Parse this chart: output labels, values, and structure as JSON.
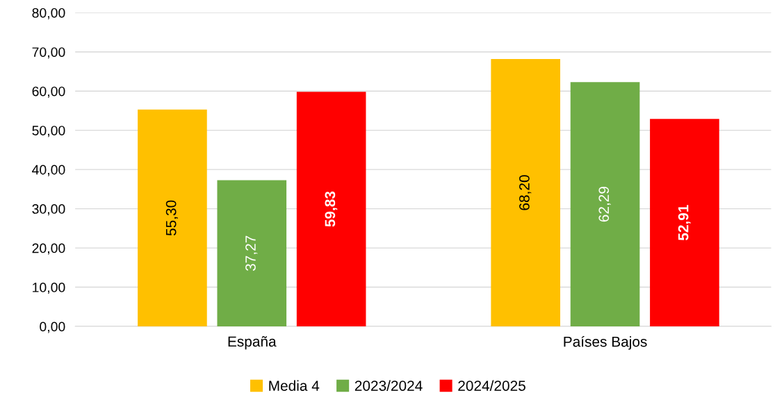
{
  "chart_data": {
    "type": "bar",
    "categories": [
      "España",
      "Países Bajos"
    ],
    "series": [
      {
        "name": "Media 4",
        "color": "#ffc000",
        "values": [
          55.3,
          68.2
        ],
        "value_labels": [
          "55,30",
          "68,20"
        ]
      },
      {
        "name": "2023/2024",
        "color": "#70ad47",
        "values": [
          37.27,
          62.29
        ],
        "value_labels": [
          "37,27",
          "62,29"
        ]
      },
      {
        "name": "2024/2025",
        "color": "#ff0000",
        "values": [
          59.83,
          52.91
        ],
        "value_labels": [
          "59,83",
          "52,91"
        ]
      }
    ],
    "ylim": [
      0,
      80
    ],
    "yticks": [
      {
        "value": 0,
        "label": "0,00"
      },
      {
        "value": 10,
        "label": "10,00"
      },
      {
        "value": 20,
        "label": "20,00"
      },
      {
        "value": 30,
        "label": "30,00"
      },
      {
        "value": 40,
        "label": "40,00"
      },
      {
        "value": 50,
        "label": "50,00"
      },
      {
        "value": 60,
        "label": "60,00"
      },
      {
        "value": 70,
        "label": "70,00"
      },
      {
        "value": 80,
        "label": "80,00"
      }
    ],
    "grid": "y",
    "legend": "bottom"
  }
}
